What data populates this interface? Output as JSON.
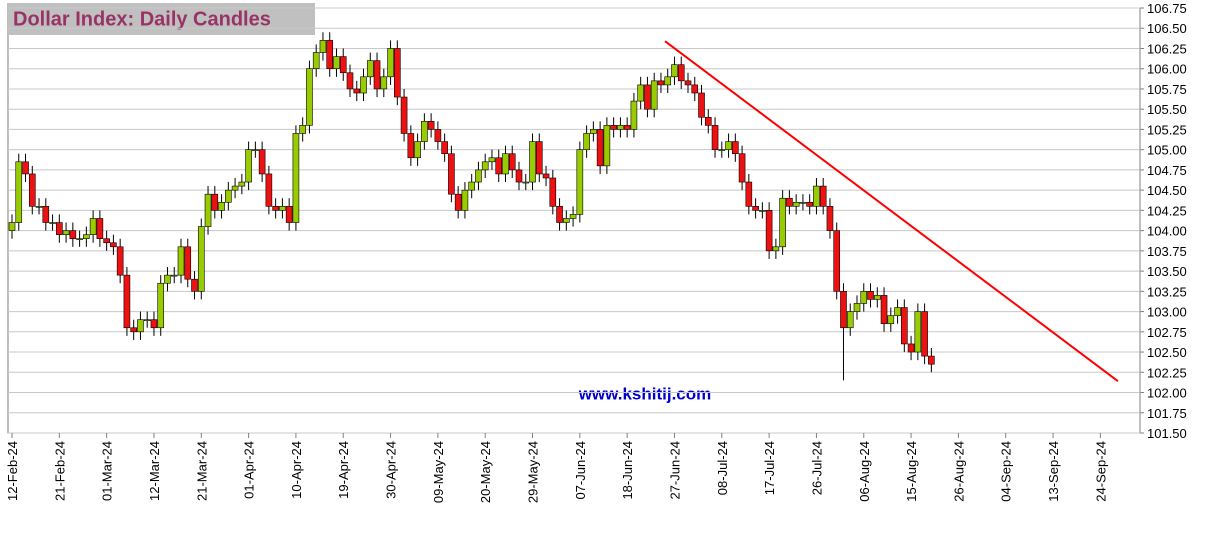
{
  "chart_data": {
    "type": "candlestick",
    "title": "Dollar Index: Daily Candles",
    "annotation": "www.kshitij.com",
    "categories": [
      "12-Feb-24",
      null,
      null,
      null,
      null,
      null,
      null,
      "21-Feb-24",
      null,
      null,
      null,
      null,
      null,
      null,
      "01-Mar-24",
      null,
      null,
      null,
      null,
      null,
      null,
      "12-Mar-24",
      null,
      null,
      null,
      null,
      null,
      null,
      "21-Mar-24",
      null,
      null,
      null,
      null,
      null,
      null,
      "01-Apr-24",
      null,
      null,
      null,
      null,
      null,
      null,
      "10-Apr-24",
      null,
      null,
      null,
      null,
      null,
      null,
      "19-Apr-24",
      null,
      null,
      null,
      null,
      null,
      null,
      "30-Apr-24",
      null,
      null,
      null,
      null,
      null,
      null,
      "09-May-24",
      null,
      null,
      null,
      null,
      null,
      null,
      "20-May-24",
      null,
      null,
      null,
      null,
      null,
      null,
      "29-May-24",
      null,
      null,
      null,
      null,
      null,
      null,
      "07-Jun-24",
      null,
      null,
      null,
      null,
      null,
      null,
      "18-Jun-24",
      null,
      null,
      null,
      null,
      null,
      null,
      "27-Jun-24",
      null,
      null,
      null,
      null,
      null,
      null,
      "08-Jul-24",
      null,
      null,
      null,
      null,
      null,
      null,
      "17-Jul-24",
      null,
      null,
      null,
      null,
      null,
      null,
      "26-Jul-24",
      null,
      null,
      null,
      null,
      null,
      null,
      "06-Aug-24",
      null,
      null,
      null,
      null,
      null,
      null,
      "15-Aug-24",
      null,
      null,
      null,
      null,
      null,
      null,
      "26-Aug-24",
      null,
      null,
      null,
      null,
      null,
      null,
      "04-Sep-24",
      null,
      null,
      null,
      null,
      null,
      null,
      "13-Sep-24",
      null,
      null,
      null,
      null,
      null,
      null,
      "24-Sep-24",
      null,
      null,
      null,
      null,
      null
    ],
    "open": [
      104.0,
      104.1,
      104.85,
      104.7,
      104.3,
      104.3,
      104.1,
      104.1,
      103.95,
      104.0,
      103.9,
      103.9,
      103.95,
      104.15,
      103.9,
      103.85,
      103.8,
      103.45,
      102.8,
      102.75,
      102.9,
      102.9,
      102.8,
      103.35,
      103.45,
      103.45,
      103.8,
      103.4,
      103.25,
      104.05,
      104.45,
      104.25,
      104.35,
      104.5,
      104.55,
      104.6,
      105.0,
      105.0,
      104.7,
      104.3,
      104.25,
      104.3,
      104.1,
      105.2,
      105.3,
      106.0,
      106.2,
      106.35,
      106.0,
      106.15,
      105.95,
      105.75,
      105.7,
      105.9,
      106.1,
      105.75,
      105.9,
      106.25,
      105.65,
      105.2,
      104.9,
      105.1,
      105.35,
      105.25,
      105.1,
      104.95,
      104.45,
      104.25,
      104.5,
      104.6,
      104.75,
      104.85,
      104.9,
      104.7,
      104.95,
      104.75,
      104.6,
      104.6,
      105.1,
      104.7,
      104.65,
      104.3,
      104.1,
      104.15,
      104.2,
      105.0,
      105.2,
      105.25,
      104.8,
      105.3,
      105.25,
      105.3,
      105.25,
      105.6,
      105.8,
      105.5,
      105.85,
      105.8,
      105.9,
      106.05,
      105.85,
      105.8,
      105.7,
      105.4,
      105.3,
      105.0,
      105.0,
      105.1,
      104.95,
      104.6,
      104.3,
      104.25,
      104.25,
      103.75,
      103.8,
      104.4,
      104.3,
      104.35,
      104.35,
      104.3,
      104.55,
      104.3,
      104.0,
      103.25,
      102.8,
      103.0,
      103.1,
      103.25,
      103.15,
      103.2,
      102.85,
      102.95,
      103.05,
      102.6,
      102.5,
      103.0,
      102.45,
      null,
      null,
      null,
      null,
      null,
      null,
      null,
      null,
      null,
      null,
      null,
      null,
      null,
      null,
      null,
      null,
      null,
      null,
      null,
      null,
      null,
      null,
      null,
      null,
      null,
      null,
      null,
      null,
      null,
      null
    ],
    "high": [
      104.2,
      104.95,
      104.95,
      104.8,
      104.4,
      104.4,
      104.2,
      104.2,
      104.1,
      104.1,
      104.0,
      104.05,
      104.25,
      104.25,
      104.0,
      103.95,
      103.9,
      103.55,
      102.9,
      103.0,
      103.0,
      103.0,
      103.45,
      103.55,
      103.55,
      103.9,
      103.9,
      103.5,
      104.15,
      104.55,
      104.55,
      104.45,
      104.6,
      104.65,
      104.7,
      105.1,
      105.1,
      105.1,
      104.8,
      104.4,
      104.4,
      104.4,
      105.3,
      105.4,
      106.1,
      106.3,
      106.45,
      106.45,
      106.25,
      106.25,
      106.05,
      105.85,
      106.0,
      106.2,
      106.2,
      106.0,
      106.35,
      106.35,
      105.75,
      105.3,
      105.2,
      105.45,
      105.45,
      105.35,
      105.2,
      105.05,
      104.55,
      104.6,
      104.7,
      104.85,
      104.95,
      105.0,
      105.0,
      105.05,
      105.05,
      104.85,
      104.7,
      105.2,
      105.2,
      104.8,
      104.75,
      104.4,
      104.25,
      104.3,
      105.1,
      105.3,
      105.35,
      105.35,
      105.4,
      105.4,
      105.4,
      105.4,
      105.7,
      105.9,
      105.9,
      105.95,
      105.95,
      106.0,
      106.15,
      106.15,
      105.95,
      105.9,
      105.8,
      105.5,
      105.4,
      105.1,
      105.2,
      105.2,
      105.05,
      104.7,
      104.4,
      104.35,
      104.35,
      103.9,
      104.5,
      104.5,
      104.45,
      104.45,
      104.45,
      104.65,
      104.65,
      104.4,
      104.1,
      103.35,
      103.1,
      103.2,
      103.35,
      103.35,
      103.3,
      103.3,
      103.05,
      103.15,
      103.15,
      102.7,
      103.1,
      103.1,
      102.55,
      null,
      null,
      null,
      null,
      null,
      null,
      null,
      null,
      null,
      null,
      null,
      null,
      null,
      null,
      null,
      null,
      null,
      null,
      null,
      null,
      null,
      null,
      null,
      null,
      null,
      null,
      null,
      null,
      null,
      null
    ],
    "low": [
      103.9,
      104.0,
      104.6,
      104.2,
      104.2,
      104.0,
      104.0,
      103.85,
      103.85,
      103.8,
      103.8,
      103.8,
      103.85,
      103.8,
      103.75,
      103.7,
      103.35,
      102.7,
      102.65,
      102.65,
      102.8,
      102.7,
      102.7,
      103.25,
      103.35,
      103.35,
      103.3,
      103.15,
      103.15,
      103.95,
      104.15,
      104.15,
      104.25,
      104.4,
      104.45,
      104.5,
      104.9,
      104.6,
      104.2,
      104.15,
      104.15,
      104.0,
      104.0,
      105.1,
      105.2,
      105.9,
      106.1,
      105.9,
      105.9,
      105.85,
      105.65,
      105.6,
      105.6,
      105.8,
      105.65,
      105.65,
      105.8,
      105.55,
      105.1,
      104.8,
      104.8,
      105.0,
      105.15,
      105.0,
      104.85,
      104.35,
      104.15,
      104.15,
      104.4,
      104.5,
      104.65,
      104.75,
      104.6,
      104.6,
      104.65,
      104.5,
      104.5,
      104.5,
      104.6,
      104.55,
      104.2,
      104.0,
      104.0,
      104.05,
      104.1,
      104.9,
      105.1,
      104.7,
      104.7,
      105.15,
      105.15,
      105.15,
      105.15,
      105.5,
      105.4,
      105.4,
      105.7,
      105.7,
      105.8,
      105.75,
      105.7,
      105.6,
      105.3,
      105.2,
      104.9,
      104.9,
      104.9,
      104.85,
      104.5,
      104.2,
      104.15,
      104.15,
      103.65,
      103.65,
      103.7,
      104.2,
      104.2,
      104.25,
      104.2,
      104.2,
      104.2,
      103.9,
      103.15,
      102.15,
      102.7,
      102.9,
      103.0,
      103.05,
      103.05,
      102.75,
      102.75,
      102.85,
      102.5,
      102.4,
      102.4,
      102.35,
      102.25,
      null,
      null,
      null,
      null,
      null,
      null,
      null,
      null,
      null,
      null,
      null,
      null,
      null,
      null,
      null,
      null,
      null,
      null,
      null,
      null,
      null,
      null,
      null,
      null,
      null,
      null,
      null,
      null,
      null,
      null
    ],
    "close": [
      104.1,
      104.85,
      104.7,
      104.3,
      104.3,
      104.1,
      104.1,
      103.95,
      104.0,
      103.9,
      103.9,
      103.95,
      104.15,
      103.9,
      103.85,
      103.8,
      103.45,
      102.8,
      102.75,
      102.9,
      102.9,
      102.8,
      103.35,
      103.45,
      103.45,
      103.8,
      103.4,
      103.25,
      104.05,
      104.45,
      104.25,
      104.35,
      104.5,
      104.55,
      104.6,
      105.0,
      105.0,
      104.7,
      104.3,
      104.25,
      104.3,
      104.1,
      105.2,
      105.3,
      106.0,
      106.2,
      106.35,
      106.0,
      106.15,
      105.95,
      105.75,
      105.7,
      105.9,
      106.1,
      105.75,
      105.9,
      106.25,
      105.65,
      105.2,
      104.9,
      105.1,
      105.35,
      105.25,
      105.1,
      104.95,
      104.45,
      104.25,
      104.5,
      104.6,
      104.75,
      104.85,
      104.9,
      104.7,
      104.95,
      104.75,
      104.6,
      104.6,
      105.1,
      104.7,
      104.65,
      104.3,
      104.1,
      104.15,
      104.2,
      105.0,
      105.2,
      105.25,
      104.8,
      105.3,
      105.25,
      105.3,
      105.25,
      105.6,
      105.8,
      105.5,
      105.85,
      105.8,
      105.9,
      106.05,
      105.85,
      105.8,
      105.7,
      105.4,
      105.3,
      105.0,
      105.0,
      105.1,
      104.95,
      104.6,
      104.3,
      104.25,
      104.25,
      103.75,
      103.8,
      104.4,
      104.3,
      104.35,
      104.35,
      104.3,
      104.55,
      104.3,
      104.0,
      103.25,
      102.8,
      103.0,
      103.1,
      103.25,
      103.15,
      103.2,
      102.85,
      102.95,
      103.05,
      102.6,
      102.5,
      103.0,
      102.45,
      102.35,
      null,
      null,
      null,
      null,
      null,
      null,
      null,
      null,
      null,
      null,
      null,
      null,
      null,
      null,
      null,
      null,
      null,
      null,
      null,
      null,
      null,
      null,
      null,
      null,
      null,
      null,
      null,
      null,
      null,
      null
    ],
    "up_color": "#99cc00",
    "down_color": "#ee1111",
    "ylim": [
      101.5,
      106.75
    ],
    "yticks": [
      {
        "value": 101.5,
        "label": "101.50"
      },
      101.75,
      {
        "value": 102,
        "label": "102.00"
      },
      102.25,
      {
        "value": 102.5,
        "label": "102.50"
      },
      102.75,
      {
        "value": 103,
        "label": "103.00"
      },
      103.25,
      {
        "value": 103.5,
        "label": "103.50"
      },
      103.75,
      {
        "value": 104,
        "label": "104.00"
      },
      104.25,
      {
        "value": 104.5,
        "label": "104.50"
      },
      104.75,
      {
        "value": 105,
        "label": "105.00"
      },
      105.25,
      {
        "value": 105.5,
        "label": "105.50"
      },
      105.75,
      {
        "value": 106,
        "label": "106.00"
      },
      106.25,
      {
        "value": 106.5,
        "label": "106.50"
      },
      106.75
    ],
    "grid": true,
    "trend_line": {
      "x": [
        96.6,
        163.6
      ],
      "y": [
        106.34,
        102.14
      ],
      "color": "#ff0000"
    }
  }
}
